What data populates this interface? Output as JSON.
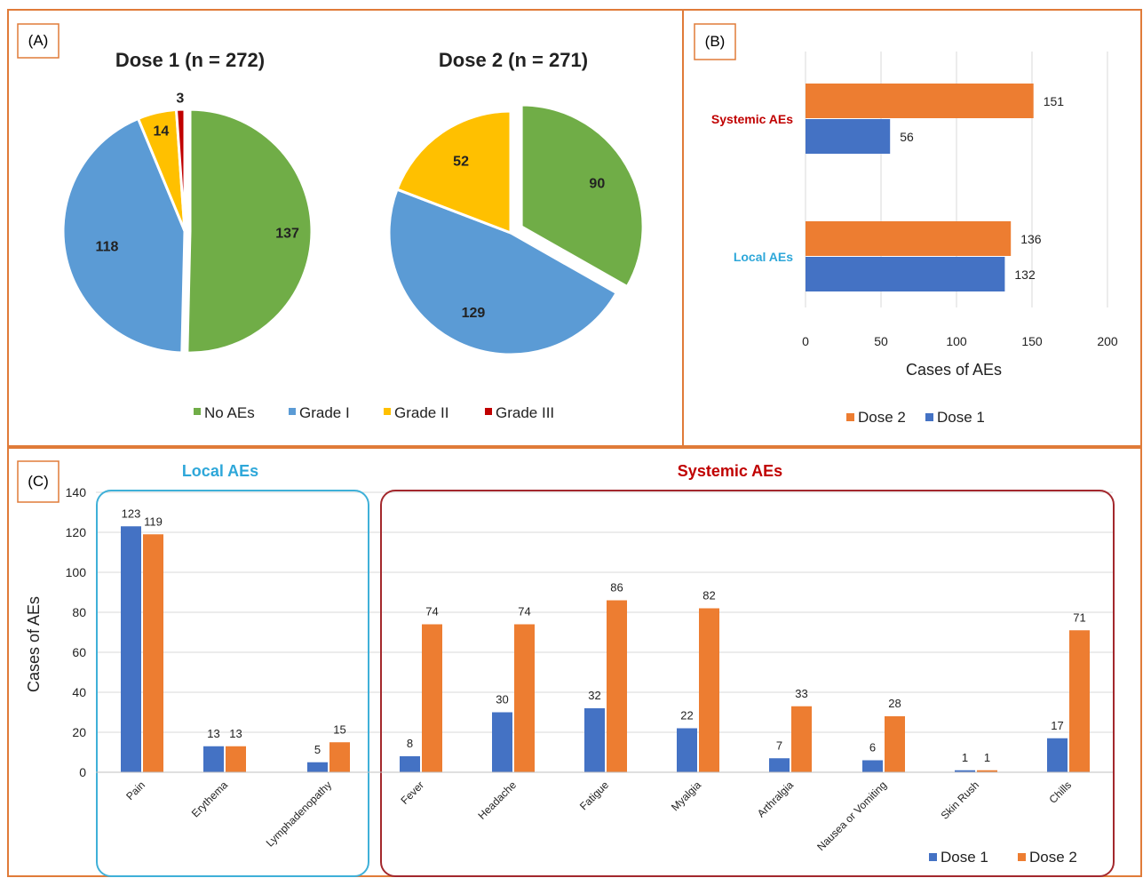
{
  "panels": {
    "a_label": "(A)",
    "b_label": "(B)",
    "c_label": "(C)"
  },
  "colors": {
    "green": "#70ad47",
    "blue_pie": "#5b9bd5",
    "yellow": "#ffc000",
    "red": "#c00000",
    "orange": "#ed7d31",
    "blue": "#4472c4",
    "frame": "#e07b39",
    "local_box": "#3fb0d8",
    "systemic_box": "#a3282d",
    "local_text": "#2ea7d9",
    "systemic_text": "#c00000"
  },
  "chart_data": [
    {
      "type": "pie",
      "title": "Dose 1 (n = 272)",
      "categories": [
        "No AEs",
        "Grade I",
        "Grade II",
        "Grade III"
      ],
      "values": [
        137,
        118,
        14,
        3
      ]
    },
    {
      "type": "pie",
      "title": "Dose 2 (n = 271)",
      "categories": [
        "No AEs",
        "Grade I",
        "Grade II"
      ],
      "values": [
        90,
        129,
        52
      ]
    },
    {
      "type": "bar",
      "orientation": "horizontal",
      "categories": [
        "Systemic AEs",
        "Local AEs"
      ],
      "series": [
        {
          "name": "Dose 2",
          "values": [
            151,
            136
          ]
        },
        {
          "name": "Dose 1",
          "values": [
            56,
            132
          ]
        }
      ],
      "xlabel": "Cases of AEs",
      "xlim": [
        0,
        200
      ],
      "xticks": [
        "0",
        "50",
        "100",
        "150",
        "200"
      ],
      "legend": [
        "Dose 2",
        "Dose 1"
      ]
    },
    {
      "type": "bar",
      "groups": [
        {
          "name": "Local AEs",
          "categories": [
            "Pain",
            "Erythema",
            "Lymphadenopathy"
          ]
        },
        {
          "name": "Systemic AEs",
          "categories": [
            "Fever",
            "Headache",
            "Fatigue",
            "Myalgia",
            "Arthralgia",
            "Nausea or Vomiting",
            "Skin Rush",
            "Chills"
          ]
        }
      ],
      "categories": [
        "Pain",
        "Erythema",
        "Lymphadenopathy",
        "Fever",
        "Headache",
        "Fatigue",
        "Myalgia",
        "Arthralgia",
        "Nausea or Vomiting",
        "Skin Rush",
        "Chills"
      ],
      "series": [
        {
          "name": "Dose 1",
          "values": [
            123,
            13,
            5,
            8,
            30,
            32,
            22,
            7,
            6,
            1,
            17
          ]
        },
        {
          "name": "Dose 2",
          "values": [
            119,
            13,
            15,
            74,
            74,
            86,
            82,
            33,
            28,
            1,
            71
          ]
        }
      ],
      "ylabel": "Cases of AEs",
      "ylim": [
        0,
        140
      ],
      "yticks": [
        "0",
        "20",
        "40",
        "60",
        "80",
        "100",
        "120",
        "140"
      ]
    }
  ]
}
